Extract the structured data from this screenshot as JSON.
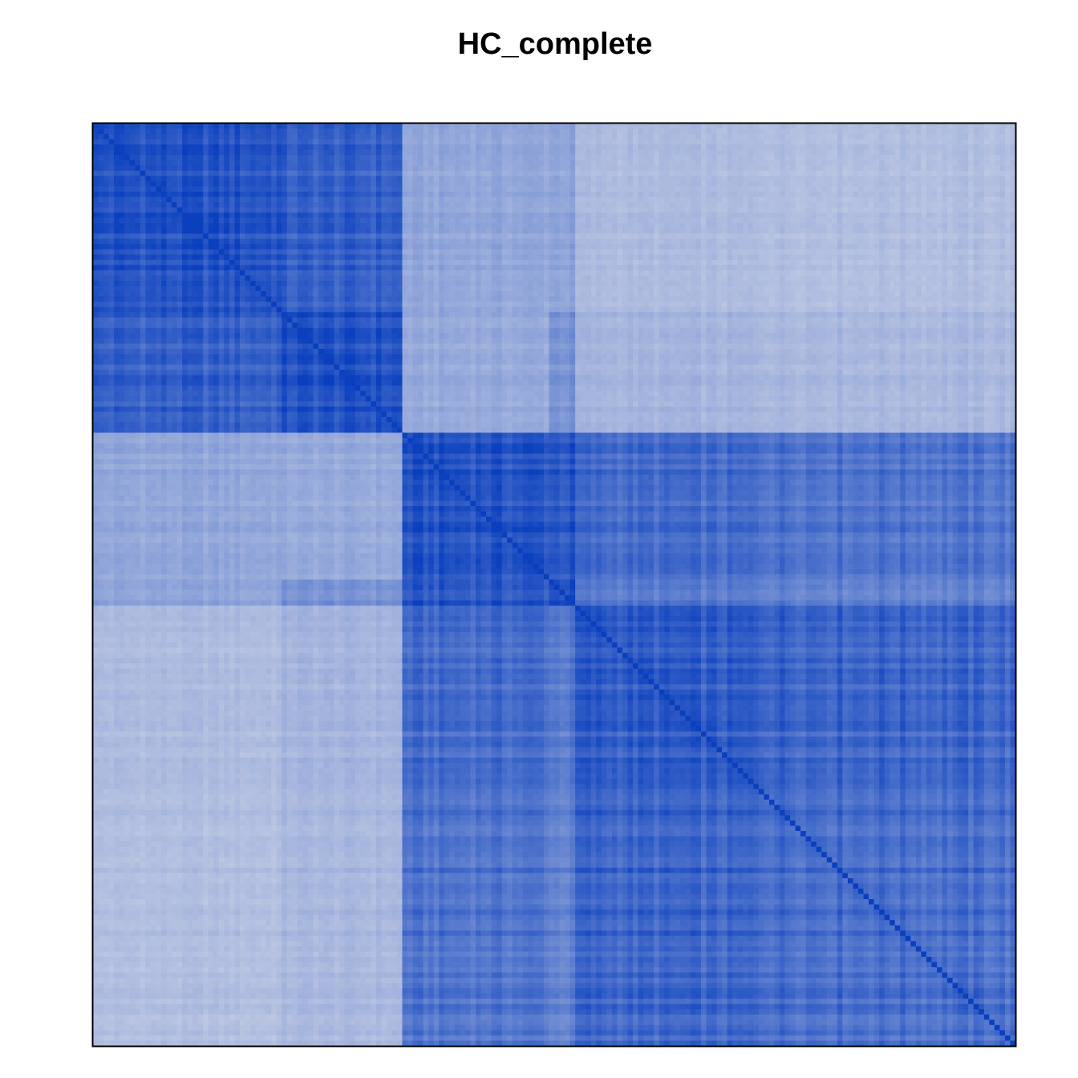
{
  "chart_data": {
    "type": "heatmap",
    "title": "HC_complete",
    "xlabel": "",
    "ylabel": "",
    "n": 176,
    "legend": "none",
    "grid": false,
    "axes_visible": false,
    "colors": {
      "low": "#e6e6ea",
      "high": "#0a3fbe",
      "border": "#000000"
    },
    "clusters": [
      {
        "name": "1a",
        "size": 36
      },
      {
        "name": "1b",
        "size": 23
      },
      {
        "name": "2a",
        "size": 28
      },
      {
        "name": "2b",
        "size": 5
      },
      {
        "name": "3",
        "size": 84
      }
    ],
    "similarity_between_clusters": [
      [
        0.88,
        0.8,
        0.38,
        0.4,
        0.26
      ],
      [
        0.8,
        0.88,
        0.36,
        0.5,
        0.3
      ],
      [
        0.38,
        0.36,
        0.88,
        0.86,
        0.74
      ],
      [
        0.4,
        0.5,
        0.86,
        0.9,
        0.65
      ],
      [
        0.26,
        0.3,
        0.74,
        0.65,
        0.84
      ]
    ],
    "diagonal_value": 1.0,
    "value_range": [
      0,
      1
    ]
  }
}
